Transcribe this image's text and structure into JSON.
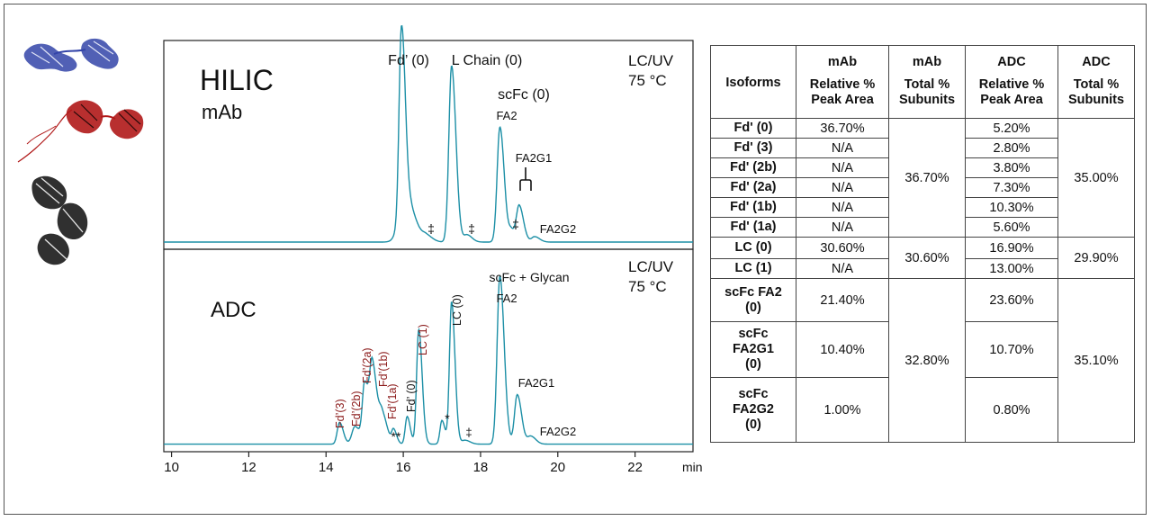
{
  "colors": {
    "trace": "#1c8fa6",
    "adc_label": "#8b1a1a",
    "axis": "#222222",
    "text": "#111111"
  },
  "structure_images": [
    {
      "name": "blue-protein-structure-icon",
      "color": "#3344a8"
    },
    {
      "name": "red-protein-structure-icon",
      "color": "#b01818"
    },
    {
      "name": "black-protein-structure-icon",
      "color": "#1a1a1a"
    }
  ],
  "panels": {
    "top": {
      "title": "HILIC",
      "subtitle": "mAb",
      "conditions": [
        "LC/UV",
        "75 °C"
      ]
    },
    "bottom": {
      "title": "ADC",
      "conditions": [
        "LC/UV",
        "75 °C"
      ]
    }
  },
  "chart_data": [
    {
      "type": "line",
      "panel": "top",
      "xlabel": "min",
      "xlim": [
        9.8,
        23.5
      ],
      "xticks": [
        10,
        12,
        14,
        16,
        18,
        20,
        22
      ],
      "series": [
        {
          "values_description": "chromatogram",
          "baseline": 0.02
        }
      ],
      "peaks": [
        {
          "rt": 15.95,
          "height": 1.0,
          "width": 0.06
        },
        {
          "rt": 16.05,
          "height": 0.25,
          "width": 0.15
        },
        {
          "rt": 16.6,
          "height": 0.03,
          "width": 0.1
        },
        {
          "rt": 17.25,
          "height": 0.98,
          "width": 0.07
        },
        {
          "rt": 17.65,
          "height": 0.04,
          "width": 0.08
        },
        {
          "rt": 18.5,
          "height": 0.64,
          "width": 0.07
        },
        {
          "rt": 18.8,
          "height": 0.06,
          "width": 0.06
        },
        {
          "rt": 19.0,
          "height": 0.2,
          "width": 0.07
        },
        {
          "rt": 19.4,
          "height": 0.03,
          "width": 0.08
        }
      ],
      "annotations": [
        {
          "text": "Fd’ (0)",
          "rt": 15.95,
          "at": "top"
        },
        {
          "text": "L Chain (0)",
          "rt": 17.25,
          "at": "top"
        },
        {
          "text": "scFc (0)",
          "rt": 18.5,
          "at": "above"
        },
        {
          "text": "FA2",
          "rt": 18.5,
          "at": "peak"
        },
        {
          "text": "FA2G1",
          "rt": 19.0,
          "at": "bracket"
        },
        {
          "text": "‡",
          "rt": 16.6
        },
        {
          "text": "‡",
          "rt": 17.65
        },
        {
          "text": "‡",
          "rt": 18.8
        },
        {
          "text": "FA2G2",
          "rt": 19.6
        }
      ]
    },
    {
      "type": "line",
      "panel": "bottom",
      "xlabel": "min",
      "xlim": [
        9.8,
        23.5
      ],
      "xticks": [
        10,
        12,
        14,
        16,
        18,
        20,
        22
      ],
      "series": [
        {
          "values_description": "chromatogram",
          "baseline": 0.02
        }
      ],
      "peaks": [
        {
          "rt": 14.35,
          "height": 0.11,
          "width": 0.06
        },
        {
          "rt": 14.75,
          "height": 0.09,
          "width": 0.08
        },
        {
          "rt": 15.0,
          "height": 0.3,
          "width": 0.06
        },
        {
          "rt": 15.2,
          "height": 0.4,
          "width": 0.07
        },
        {
          "rt": 15.45,
          "height": 0.15,
          "width": 0.08
        },
        {
          "rt": 15.75,
          "height": 0.07,
          "width": 0.05
        },
        {
          "rt": 16.1,
          "height": 0.14,
          "width": 0.05
        },
        {
          "rt": 16.4,
          "height": 0.58,
          "width": 0.055
        },
        {
          "rt": 17.0,
          "height": 0.12,
          "width": 0.05
        },
        {
          "rt": 17.25,
          "height": 0.72,
          "width": 0.055
        },
        {
          "rt": 17.6,
          "height": 0.02,
          "width": 0.08
        },
        {
          "rt": 18.5,
          "height": 0.85,
          "width": 0.07
        },
        {
          "rt": 18.95,
          "height": 0.25,
          "width": 0.07
        },
        {
          "rt": 19.3,
          "height": 0.04,
          "width": 0.08
        }
      ],
      "annotations": [
        {
          "text": "scFc + Glycan",
          "rt": 18.5,
          "at": "above"
        },
        {
          "text": "FA2",
          "rt": 18.5,
          "at": "peak"
        },
        {
          "text": "FA2G1",
          "rt": 18.95
        },
        {
          "text": "FA2G2",
          "rt": 19.6
        },
        {
          "text": "Fd’(3)",
          "rt": 14.35,
          "color": "red",
          "rotated": true
        },
        {
          "text": "Fd’(2b)",
          "rt": 14.75,
          "color": "red",
          "rotated": true
        },
        {
          "text": "Fd’(2a)",
          "rt": 15.0,
          "color": "red",
          "rotated": true
        },
        {
          "text": "Fd’(1b)",
          "rt": 15.3,
          "color": "red",
          "rotated": true
        },
        {
          "text": "Fd’(1a)",
          "rt": 15.6,
          "color": "red",
          "rotated": true
        },
        {
          "text": "Fd’ (0)",
          "rt": 16.1,
          "color": "black",
          "rotated": true
        },
        {
          "text": "LC (1)",
          "rt": 16.4,
          "color": "red",
          "rotated": true
        },
        {
          "text": "LC (0)",
          "rt": 17.25,
          "color": "black",
          "rotated": true
        },
        {
          "text": "**",
          "rt": 15.8
        },
        {
          "text": "*",
          "rt": 17.0
        },
        {
          "text": "‡",
          "rt": 17.6
        }
      ]
    }
  ],
  "table": {
    "headers": [
      {
        "top": "",
        "sub": "Isoforms"
      },
      {
        "top": "mAb",
        "sub": "Relative %\nPeak Area"
      },
      {
        "top": "mAb",
        "sub": "Total %\nSubunits"
      },
      {
        "top": "ADC",
        "sub": "Relative %\nPeak Area"
      },
      {
        "top": "ADC",
        "sub": "Total %\nSubunits"
      }
    ],
    "rows": [
      {
        "isoform": "Fd' (0)",
        "mab_rel": "36.70%",
        "adc_rel": "5.20%"
      },
      {
        "isoform": "Fd' (3)",
        "mab_rel": "N/A",
        "adc_rel": "2.80%"
      },
      {
        "isoform": "Fd' (2b)",
        "mab_rel": "N/A",
        "adc_rel": "3.80%"
      },
      {
        "isoform": "Fd' (2a)",
        "mab_rel": "N/A",
        "adc_rel": "7.30%"
      },
      {
        "isoform": "Fd' (1b)",
        "mab_rel": "N/A",
        "adc_rel": "10.30%"
      },
      {
        "isoform": "Fd' (1a)",
        "mab_rel": "N/A",
        "adc_rel": "5.60%"
      },
      {
        "isoform": "LC (0)",
        "mab_rel": "30.60%",
        "adc_rel": "16.90%"
      },
      {
        "isoform": "LC (1)",
        "mab_rel": "N/A",
        "adc_rel": "13.00%"
      },
      {
        "isoform": "scFc FA2\n(0)",
        "mab_rel": "21.40%",
        "adc_rel": "23.60%"
      },
      {
        "isoform": "scFc\nFA2G1\n(0)",
        "mab_rel": "10.40%",
        "adc_rel": "10.70%"
      },
      {
        "isoform": "scFc\nFA2G2\n(0)",
        "mab_rel": "1.00%",
        "adc_rel": "0.80%"
      }
    ],
    "groups": [
      {
        "rows": [
          0,
          5
        ],
        "mab_total": "36.70%",
        "adc_total": "35.00%"
      },
      {
        "rows": [
          6,
          7
        ],
        "mab_total": "30.60%",
        "adc_total": "29.90%"
      },
      {
        "rows": [
          8,
          10
        ],
        "mab_total": "32.80%",
        "adc_total": "35.10%"
      }
    ]
  }
}
